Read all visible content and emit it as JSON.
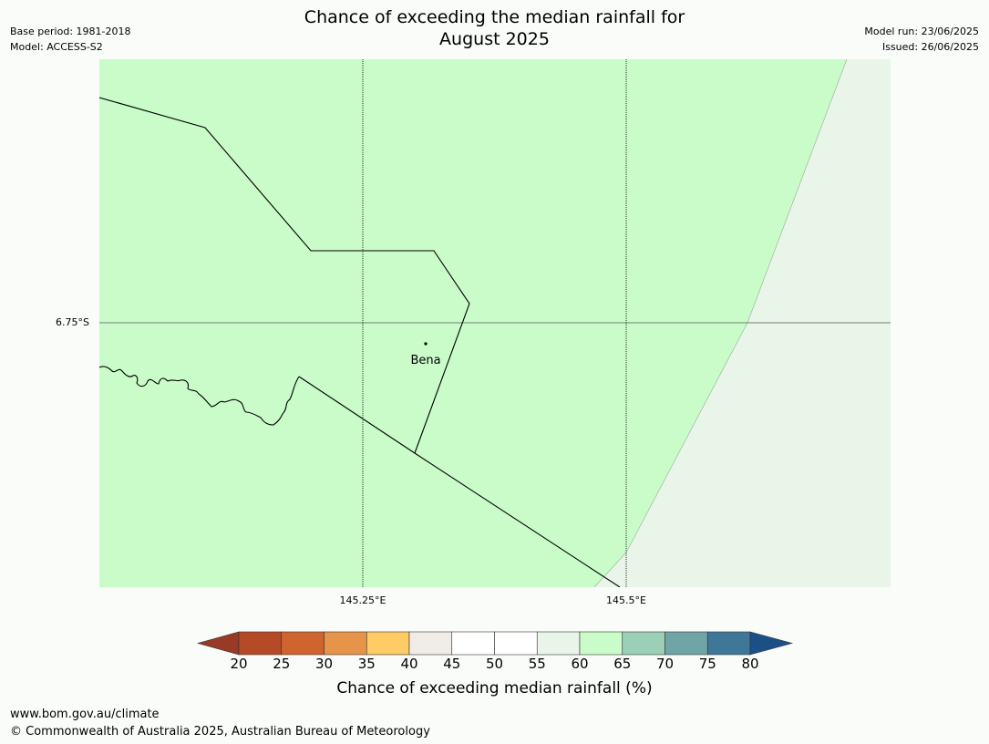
{
  "header": {
    "base_period": "Base period: 1981-2018",
    "model": "Model: ACCESS-S2",
    "title_line1": "Chance of exceeding the median rainfall for",
    "title_line2": "August 2025",
    "model_run": "Model run: 23/06/2025",
    "issued": "Issued: 26/06/2025"
  },
  "map": {
    "lat_label": "6.75°S",
    "lon_labels": [
      "145.25°E",
      "145.5°E"
    ],
    "place_name": "Bena",
    "fill_main": "#c9fcc9",
    "fill_east": "#eaf5ea"
  },
  "colorbar": {
    "title": "Chance of exceeding median rainfall (%)",
    "ticks": [
      "20",
      "25",
      "30",
      "35",
      "40",
      "45",
      "50",
      "55",
      "60",
      "65",
      "70",
      "75",
      "80"
    ],
    "under_color": "#983a26",
    "over_color": "#1b5086",
    "colors": [
      "#b54a27",
      "#d0642f",
      "#e5944a",
      "#fecb65",
      "#f0ece8",
      "#ffffff",
      "#ffffff",
      "#eaf5ea",
      "#c9fcc9",
      "#9ccfb7",
      "#6fa5a6",
      "#3f7799"
    ]
  },
  "footer": {
    "url": "www.bom.gov.au/climate",
    "copyright": "© Commonwealth of Australia 2025, Australian Bureau of Meteorology"
  }
}
